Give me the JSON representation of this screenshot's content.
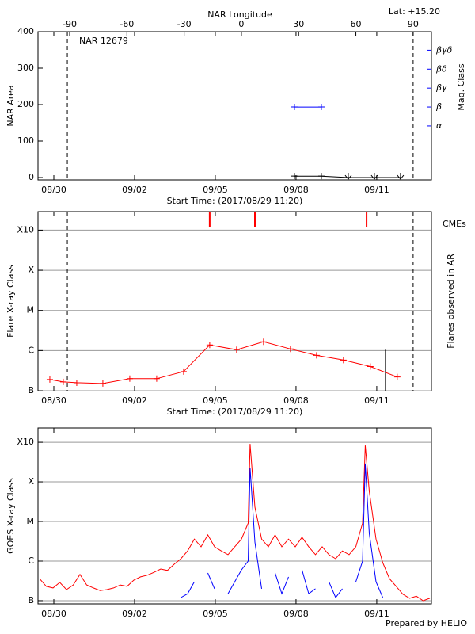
{
  "chart_data": [
    {
      "type": "line",
      "annotation": "NAR 12679",
      "corner_label": "Lat: +15.20",
      "ylabel": "NAR Area",
      "xlabel": "Start Time: (2017/08/29 11:20)",
      "x2label": "NAR Longitude",
      "y2label": "Mag. Class",
      "xlim": [
        -0.06,
        14.56
      ],
      "xticks": [
        {
          "value": 0.528,
          "label": "08/30"
        },
        {
          "value": 3.528,
          "label": "09/02"
        },
        {
          "value": 6.528,
          "label": "09/05"
        },
        {
          "value": 9.528,
          "label": "09/08"
        },
        {
          "value": 12.528,
          "label": "09/11"
        }
      ],
      "x2lim": [
        -106.6,
        99.6
      ],
      "x2ticks": [
        -90,
        -60,
        -30,
        0,
        30,
        60,
        90
      ],
      "ylim": [
        -6.5,
        400
      ],
      "yticks": [
        0,
        100,
        200,
        300,
        400
      ],
      "y2lim": [
        -1.85,
        5.98
      ],
      "y2ticks": [
        {
          "value": 1,
          "label": "α"
        },
        {
          "value": 2,
          "label": "β"
        },
        {
          "value": 3,
          "label": "βγ"
        },
        {
          "value": 4,
          "label": "βδ"
        },
        {
          "value": 5,
          "label": "βγδ"
        }
      ],
      "y2color": "#0000ff",
      "dashed_x": [
        1.03,
        13.88
      ],
      "series": [
        {
          "color": "#000000",
          "x": [
            9.47,
            10.47,
            11.47,
            12.44,
            13.41
          ],
          "values": [
            4,
            4,
            0,
            0,
            0
          ],
          "markers": [
            "plus",
            "plus",
            "arrow",
            "arrow",
            "arrow"
          ]
        },
        {
          "color": "#0000ff",
          "axis": "y2",
          "x": [
            9.47,
            10.47
          ],
          "values": [
            2,
            2
          ],
          "markers": [
            "plus",
            "plus"
          ]
        }
      ]
    },
    {
      "type": "line",
      "log": true,
      "grid": true,
      "ylabel": "Flare X-ray Class",
      "xlabel": "Start Time: (2017/08/29 11:20)",
      "y2label": "Flares observed in AR",
      "cme_label": "CMEs",
      "cme_color": "#ff0000",
      "cme_x": [
        6.32,
        8.0,
        12.15
      ],
      "xlim": [
        -0.06,
        14.56
      ],
      "xticks": [
        {
          "value": 0.528,
          "label": "08/30"
        },
        {
          "value": 3.528,
          "label": "09/02"
        },
        {
          "value": 6.528,
          "label": "09/05"
        },
        {
          "value": 9.528,
          "label": "09/08"
        },
        {
          "value": 12.528,
          "label": "09/11"
        }
      ],
      "ylim": [
        1e-07,
        0.0029
      ],
      "yticks": [
        {
          "value": 1e-07,
          "label": "B"
        },
        {
          "value": 1e-06,
          "label": "C"
        },
        {
          "value": 1e-05,
          "label": "M"
        },
        {
          "value": 0.0001,
          "label": "X"
        },
        {
          "value": 0.001,
          "label": "X10"
        }
      ],
      "dashed_x": [
        1.03,
        13.88
      ],
      "flare_x": [
        12.85
      ],
      "flare_values": [
        1.05e-06
      ],
      "series": [
        {
          "color": "#ff0000",
          "x": [
            0.38,
            0.88,
            1.38,
            2.35,
            3.35,
            4.35,
            5.35,
            6.32,
            7.32,
            8.32,
            9.32,
            10.29,
            11.29,
            12.29,
            13.29
          ],
          "values": [
            1.9e-07,
            1.66e-07,
            1.58e-07,
            1.51e-07,
            2e-07,
            2e-07,
            3e-07,
            1.38e-06,
            1.05e-06,
            1.66e-06,
            1.1e-06,
            7.6e-07,
            5.8e-07,
            4e-07,
            2.2e-07
          ],
          "marker": "plus"
        }
      ]
    },
    {
      "type": "line",
      "log": true,
      "grid": true,
      "ylabel": "GOES X-ray Class",
      "footer": "Prepared by HELIO",
      "xlim": [
        -0.06,
        14.56
      ],
      "xticks": [
        {
          "value": 0.528,
          "label": "08/30"
        },
        {
          "value": 3.528,
          "label": "09/02"
        },
        {
          "value": 6.528,
          "label": "09/05"
        },
        {
          "value": 9.528,
          "label": "09/08"
        },
        {
          "value": 12.528,
          "label": "09/11"
        }
      ],
      "ylim": [
        8.3e-08,
        0.0023
      ],
      "yticks": [
        {
          "value": 1e-07,
          "label": "B"
        },
        {
          "value": 1e-06,
          "label": "C"
        },
        {
          "value": 1e-05,
          "label": "M"
        },
        {
          "value": 0.0001,
          "label": "X"
        },
        {
          "value": 0.001,
          "label": "X10"
        }
      ],
      "x": [
        0,
        0.25,
        0.5,
        0.75,
        1,
        1.25,
        1.5,
        1.75,
        2,
        2.25,
        2.5,
        2.75,
        3,
        3.25,
        3.5,
        3.75,
        4,
        4.25,
        4.5,
        4.75,
        5,
        5.25,
        5.5,
        5.75,
        6,
        6.25,
        6.5,
        6.75,
        7,
        7.25,
        7.5,
        7.75,
        7.82,
        8,
        8.25,
        8.5,
        8.75,
        9,
        9.25,
        9.5,
        9.75,
        10,
        10.25,
        10.5,
        10.75,
        11,
        11.25,
        11.5,
        11.75,
        12,
        12.1,
        12.25,
        12.5,
        12.75,
        13,
        13.25,
        13.5,
        13.75,
        14,
        14.25,
        14.5
      ],
      "series": [
        {
          "color": "#ff0000",
          "values": [
            3.6e-07,
            2.3e-07,
            2.1e-07,
            2.9e-07,
            1.9e-07,
            2.5e-07,
            4.6e-07,
            2.5e-07,
            2.1e-07,
            1.8e-07,
            1.9e-07,
            2.1e-07,
            2.5e-07,
            2.3e-07,
            3.3e-07,
            4e-07,
            4.4e-07,
            5.2e-07,
            6.3e-07,
            5.8e-07,
            8.3e-07,
            1.15e-06,
            1.8e-06,
            3.6e-06,
            2.3e-06,
            4.6e-06,
            2.3e-06,
            1.8e-06,
            1.45e-06,
            2.3e-06,
            3.6e-06,
            9.1e-06,
            0.00091,
            2.3e-05,
            3.6e-06,
            2.3e-06,
            4.6e-06,
            2.3e-06,
            3.6e-06,
            2.3e-06,
            4e-06,
            2.3e-06,
            1.45e-06,
            2.3e-06,
            1.45e-06,
            1.15e-06,
            1.8e-06,
            1.45e-06,
            2.3e-06,
            9.1e-06,
            0.00083,
            5.8e-05,
            3.6e-06,
            9.1e-07,
            3.6e-07,
            2.3e-07,
            1.45e-07,
            1.15e-07,
            1.3e-07,
            1e-07,
            1.15e-07
          ]
        },
        {
          "color": "#0000ff",
          "values": [
            null,
            null,
            null,
            null,
            null,
            null,
            null,
            null,
            null,
            null,
            null,
            null,
            null,
            null,
            1.6e-07,
            null,
            null,
            null,
            null,
            null,
            null,
            1.2e-07,
            1.5e-07,
            3e-07,
            null,
            5e-07,
            2e-07,
            null,
            1.5e-07,
            3e-07,
            6e-07,
            1e-06,
            0.00023,
            3e-06,
            2e-07,
            null,
            5e-07,
            1.5e-07,
            4e-07,
            null,
            6e-07,
            1.5e-07,
            2e-07,
            null,
            3e-07,
            1.2e-07,
            2e-07,
            null,
            3e-07,
            1e-06,
            0.00029,
            5e-06,
            3e-07,
            1.2e-07,
            null,
            null,
            null,
            null,
            null,
            null,
            null
          ]
        }
      ]
    }
  ]
}
